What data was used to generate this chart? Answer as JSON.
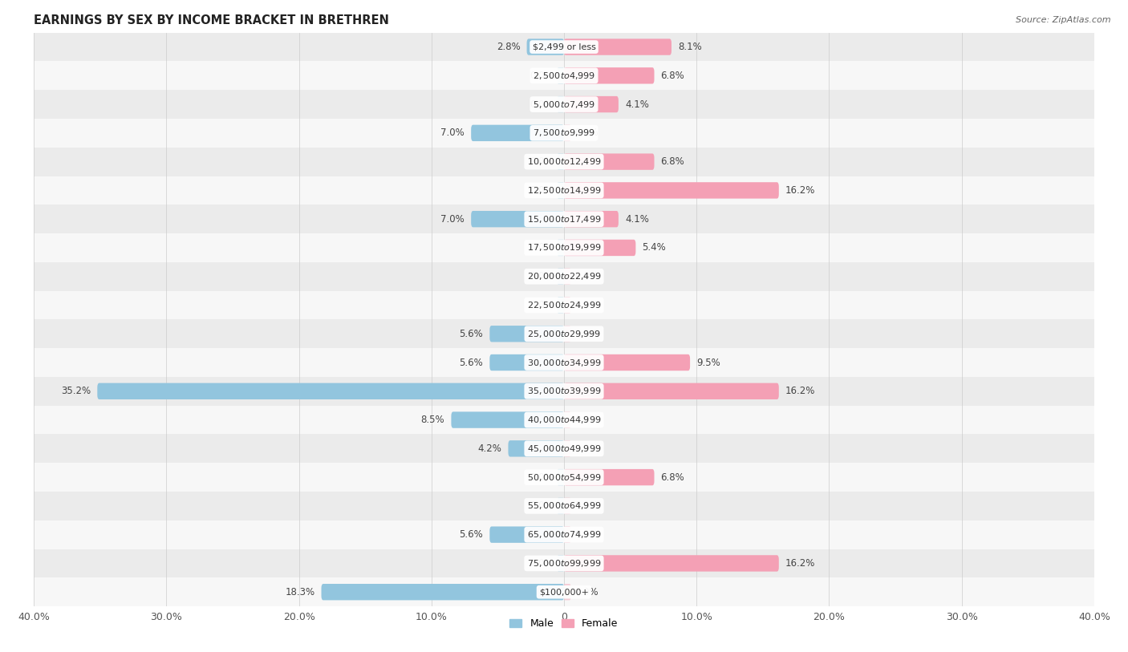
{
  "title": "EARNINGS BY SEX BY INCOME BRACKET IN BRETHREN",
  "source": "Source: ZipAtlas.com",
  "categories": [
    "$2,499 or less",
    "$2,500 to $4,999",
    "$5,000 to $7,499",
    "$7,500 to $9,999",
    "$10,000 to $12,499",
    "$12,500 to $14,999",
    "$15,000 to $17,499",
    "$17,500 to $19,999",
    "$20,000 to $22,499",
    "$22,500 to $24,999",
    "$25,000 to $29,999",
    "$30,000 to $34,999",
    "$35,000 to $39,999",
    "$40,000 to $44,999",
    "$45,000 to $49,999",
    "$50,000 to $54,999",
    "$55,000 to $64,999",
    "$65,000 to $74,999",
    "$75,000 to $99,999",
    "$100,000+"
  ],
  "male": [
    2.8,
    0.0,
    0.0,
    7.0,
    0.0,
    0.0,
    7.0,
    0.0,
    0.0,
    0.0,
    5.6,
    5.6,
    35.2,
    8.5,
    4.2,
    0.0,
    0.0,
    5.6,
    0.0,
    18.3
  ],
  "female": [
    8.1,
    6.8,
    4.1,
    0.0,
    6.8,
    16.2,
    4.1,
    5.4,
    0.0,
    0.0,
    0.0,
    9.5,
    16.2,
    0.0,
    0.0,
    6.8,
    0.0,
    0.0,
    16.2,
    0.0
  ],
  "male_color": "#92c5de",
  "female_color": "#f4a0b5",
  "xlim": 40.0,
  "bar_height": 0.55,
  "bg_color_odd": "#ebebeb",
  "bg_color_even": "#f7f7f7",
  "title_fontsize": 10.5,
  "label_fontsize": 8.0,
  "axis_fontsize": 9,
  "legend_fontsize": 9,
  "value_fontsize": 8.5
}
